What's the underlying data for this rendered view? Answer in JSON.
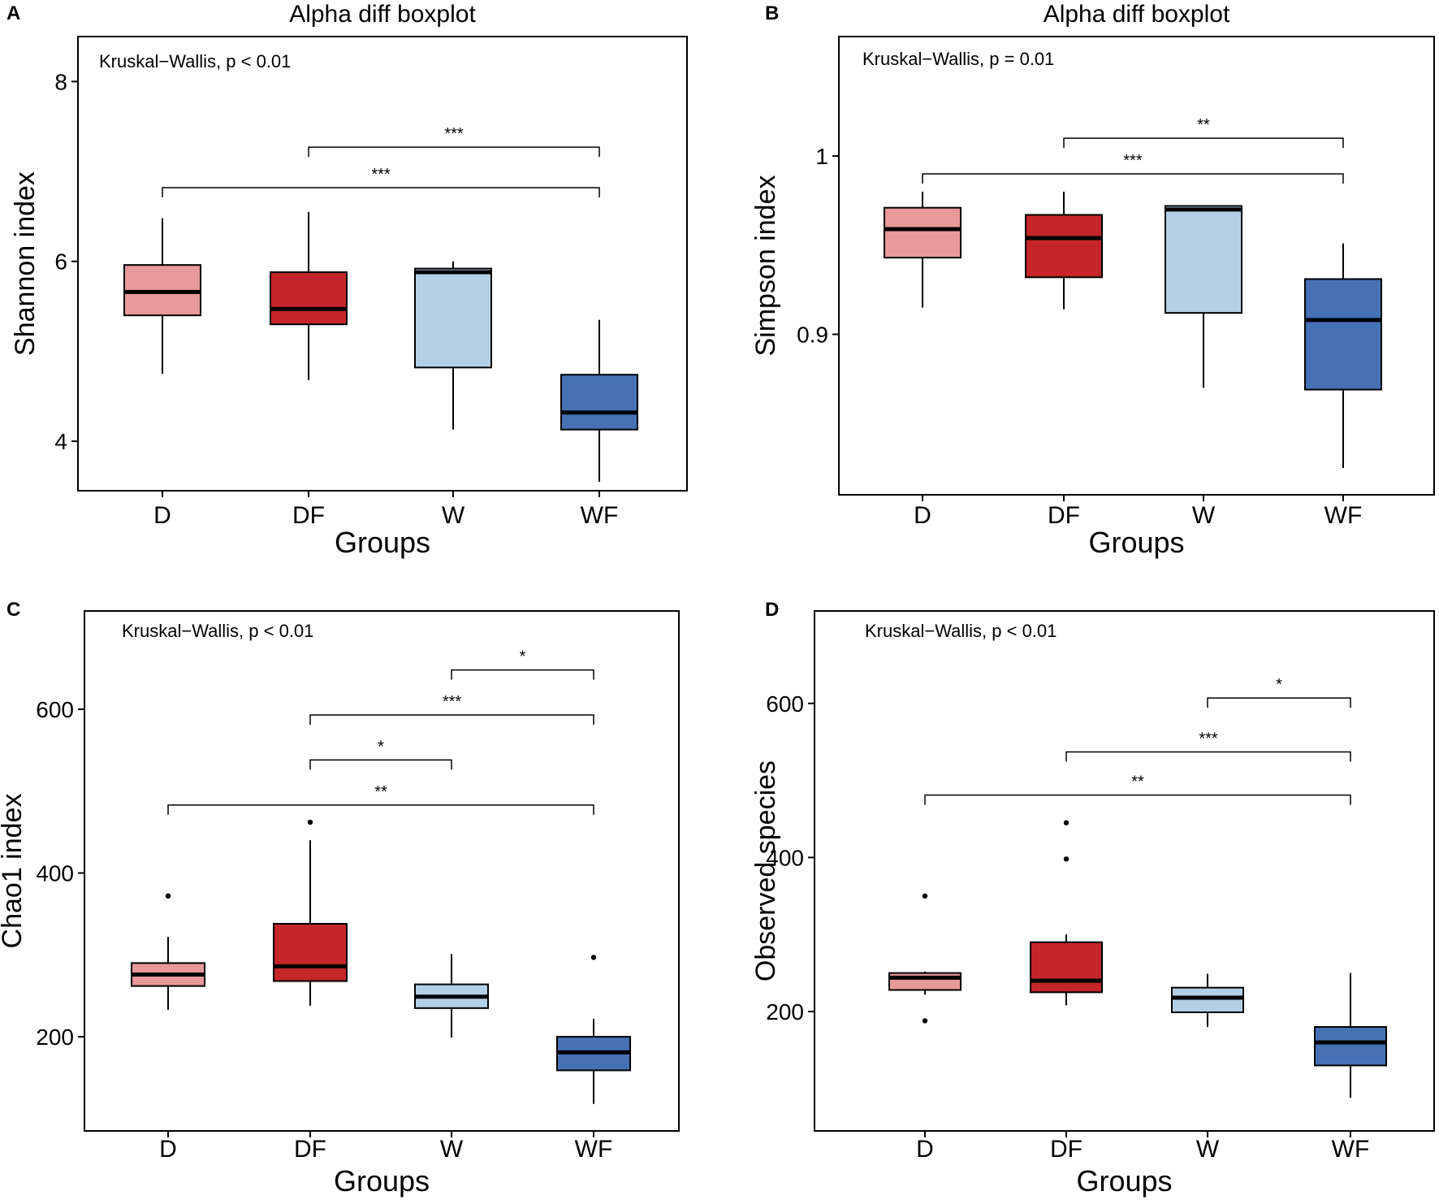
{
  "chart_data": [
    {
      "panel": "A",
      "type": "boxplot",
      "title": "Alpha diff boxplot",
      "xlabel": "Groups",
      "ylabel": "Shannon index",
      "categories": [
        "D",
        "DF",
        "W",
        "WF"
      ],
      "yticks": [
        4,
        6,
        8
      ],
      "ylim": [
        3.45,
        8.5
      ],
      "annotation": "Kruskal−Wallis, p < 0.01",
      "boxes": [
        {
          "group": "D",
          "color": "#e8999a",
          "min": 4.75,
          "q1": 5.4,
          "median": 5.66,
          "q3": 5.96,
          "max": 6.48,
          "outliers": []
        },
        {
          "group": "DF",
          "color": "#c4262a",
          "min": 4.68,
          "q1": 5.3,
          "median": 5.47,
          "q3": 5.88,
          "max": 6.55,
          "outliers": []
        },
        {
          "group": "W",
          "color": "#b3cfe5",
          "min": 4.13,
          "q1": 4.82,
          "median": 5.88,
          "q3": 5.92,
          "max": 6.0,
          "outliers": []
        },
        {
          "group": "WF",
          "color": "#4672b5",
          "min": 3.55,
          "q1": 4.13,
          "median": 4.32,
          "q3": 4.74,
          "max": 5.35,
          "outliers": []
        }
      ],
      "comparisons": [
        {
          "from": "DF",
          "to": "WF",
          "y": 7.27,
          "label": "***"
        },
        {
          "from": "D",
          "to": "WF",
          "y": 6.82,
          "label": "***"
        }
      ]
    },
    {
      "panel": "B",
      "type": "boxplot",
      "title": "Alpha diff boxplot",
      "xlabel": "Groups",
      "ylabel": "Simpson index",
      "categories": [
        "D",
        "DF",
        "W",
        "WF"
      ],
      "yticks": [
        0.9,
        1.0
      ],
      "ylim": [
        0.81,
        1.067
      ],
      "annotation": "Kruskal−Wallis, p = 0.01",
      "boxes": [
        {
          "group": "D",
          "color": "#e8999a",
          "min": 0.915,
          "q1": 0.943,
          "median": 0.959,
          "q3": 0.971,
          "max": 0.98,
          "outliers": []
        },
        {
          "group": "DF",
          "color": "#c4262a",
          "min": 0.914,
          "q1": 0.932,
          "median": 0.954,
          "q3": 0.967,
          "max": 0.98,
          "outliers": []
        },
        {
          "group": "W",
          "color": "#b3cfe5",
          "min": 0.87,
          "q1": 0.912,
          "median": 0.97,
          "q3": 0.972,
          "max": 0.972,
          "outliers": []
        },
        {
          "group": "WF",
          "color": "#4672b5",
          "min": 0.825,
          "q1": 0.869,
          "median": 0.908,
          "q3": 0.931,
          "max": 0.951,
          "outliers": []
        }
      ],
      "comparisons": [
        {
          "from": "DF",
          "to": "WF",
          "y": 1.01,
          "label": "**"
        },
        {
          "from": "D",
          "to": "WF",
          "y": 0.99,
          "label": "***"
        }
      ]
    },
    {
      "panel": "C",
      "type": "boxplot",
      "title": "",
      "xlabel": "Groups",
      "ylabel": "Chao1 index",
      "categories": [
        "D",
        "DF",
        "W",
        "WF"
      ],
      "yticks": [
        200,
        400,
        600
      ],
      "ylim": [
        85,
        720
      ],
      "annotation": "Kruskal−Wallis, p < 0.01",
      "boxes": [
        {
          "group": "D",
          "color": "#e8999a",
          "min": 233,
          "q1": 262,
          "median": 276,
          "q3": 290,
          "max": 322,
          "outliers": [
            372
          ]
        },
        {
          "group": "DF",
          "color": "#c4262a",
          "min": 238,
          "q1": 268,
          "median": 286,
          "q3": 338,
          "max": 440,
          "outliers": [
            462
          ]
        },
        {
          "group": "W",
          "color": "#b3cfe5",
          "min": 199,
          "q1": 235,
          "median": 249,
          "q3": 264,
          "max": 301,
          "outliers": []
        },
        {
          "group": "WF",
          "color": "#4672b5",
          "min": 118,
          "q1": 159,
          "median": 181,
          "q3": 200,
          "max": 222,
          "outliers": [
            297
          ]
        }
      ],
      "comparisons": [
        {
          "from": "W",
          "to": "WF",
          "y": 648,
          "label": "*"
        },
        {
          "from": "DF",
          "to": "WF",
          "y": 593,
          "label": "***"
        },
        {
          "from": "DF",
          "to": "W",
          "y": 538,
          "label": "*"
        },
        {
          "from": "D",
          "to": "WF",
          "y": 483,
          "label": "**"
        }
      ]
    },
    {
      "panel": "D",
      "type": "boxplot",
      "title": "",
      "xlabel": "Groups",
      "ylabel": "Observed species",
      "categories": [
        "D",
        "DF",
        "W",
        "WF"
      ],
      "yticks": [
        200,
        400,
        600
      ],
      "ylim": [
        45,
        720
      ],
      "annotation": "Kruskal−Wallis, p < 0.01",
      "boxes": [
        {
          "group": "D",
          "color": "#e8999a",
          "min": 222,
          "q1": 228,
          "median": 244,
          "q3": 250,
          "max": 252,
          "outliers": [
            350,
            188
          ]
        },
        {
          "group": "DF",
          "color": "#c4262a",
          "min": 208,
          "q1": 225,
          "median": 240,
          "q3": 290,
          "max": 300,
          "outliers": [
            445,
            398
          ]
        },
        {
          "group": "W",
          "color": "#b3cfe5",
          "min": 180,
          "q1": 199,
          "median": 218,
          "q3": 231,
          "max": 249,
          "outliers": []
        },
        {
          "group": "WF",
          "color": "#4672b5",
          "min": 88,
          "q1": 130,
          "median": 160,
          "q3": 180,
          "max": 250,
          "outliers": []
        }
      ],
      "comparisons": [
        {
          "from": "W",
          "to": "WF",
          "y": 607,
          "label": "*"
        },
        {
          "from": "DF",
          "to": "WF",
          "y": 537,
          "label": "***"
        },
        {
          "from": "D",
          "to": "WF",
          "y": 481,
          "label": "**"
        }
      ]
    }
  ]
}
